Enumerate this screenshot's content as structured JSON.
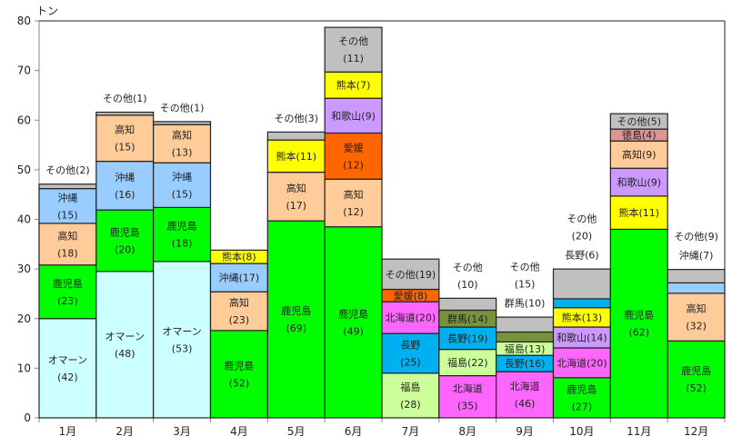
{
  "chart_data": {
    "type": "bar",
    "stacked": true,
    "variable_width": true,
    "title": "",
    "ylabel": "トン",
    "xlabel": "",
    "ylim": [
      0,
      80
    ],
    "yticks": [
      0,
      10,
      20,
      30,
      40,
      50,
      60,
      70,
      80
    ],
    "grid": false,
    "categories": [
      "1月",
      "2月",
      "3月",
      "4月",
      "5月",
      "6月",
      "7月",
      "8月",
      "9月",
      "10月",
      "11月",
      "12月"
    ],
    "colors": {
      "オマーン": "#ccffff",
      "鹿児島": "#00ff00",
      "高知": "#ffcc99",
      "沖縄": "#99ccff",
      "熊本": "#ffff00",
      "愛媛": "#ff6600",
      "和歌山": "#cc99ff",
      "北海道": "#ff66ff",
      "長野": "#00b0f0",
      "福島": "#ccff99",
      "群馬": "#77933c",
      "徳島": "#da9694",
      "その他": "#c0c0c0"
    },
    "months": [
      {
        "month": "1月",
        "segments": [
          {
            "name": "オマーン",
            "value": 20.0,
            "label": "オマーン\n(42)"
          },
          {
            "name": "鹿児島",
            "value": 10.8,
            "label": "鹿児島\n(23)"
          },
          {
            "name": "高知",
            "value": 8.4,
            "label": "高知\n(18)"
          },
          {
            "name": "沖縄",
            "value": 7.0,
            "label": "沖縄\n(15)"
          },
          {
            "name": "その他",
            "value": 0.9,
            "label": "その他(2)",
            "outside": true
          }
        ]
      },
      {
        "month": "2月",
        "segments": [
          {
            "name": "オマーン",
            "value": 29.5,
            "label": "オマーン\n(48)"
          },
          {
            "name": "鹿児島",
            "value": 12.4,
            "label": "鹿児島\n(20)"
          },
          {
            "name": "沖縄",
            "value": 9.8,
            "label": "沖縄\n(16)"
          },
          {
            "name": "高知",
            "value": 9.3,
            "label": "高知\n(15)"
          },
          {
            "name": "その他",
            "value": 0.6,
            "label": "その他(1)",
            "outside": true
          }
        ]
      },
      {
        "month": "3月",
        "segments": [
          {
            "name": "オマーン",
            "value": 31.5,
            "label": "オマーン\n(53)"
          },
          {
            "name": "鹿児島",
            "value": 10.9,
            "label": "鹿児島\n(18)"
          },
          {
            "name": "沖縄",
            "value": 9.0,
            "label": "沖縄\n(15)"
          },
          {
            "name": "高知",
            "value": 7.7,
            "label": "高知\n(13)"
          },
          {
            "name": "その他",
            "value": 0.6,
            "label": "その他(1)",
            "outside": true
          }
        ]
      },
      {
        "month": "4月",
        "segments": [
          {
            "name": "鹿児島",
            "value": 17.6,
            "label": "鹿児島\n(52)"
          },
          {
            "name": "高知",
            "value": 7.8,
            "label": "高知\n(23)"
          },
          {
            "name": "沖縄",
            "value": 5.7,
            "label": "沖縄(17)"
          },
          {
            "name": "熊本",
            "value": 2.7,
            "label": "熊本(8)"
          }
        ]
      },
      {
        "month": "5月",
        "segments": [
          {
            "name": "鹿児島",
            "value": 39.7,
            "label": "鹿児島\n(69)"
          },
          {
            "name": "高知",
            "value": 9.8,
            "label": "高知\n(17)"
          },
          {
            "name": "熊本",
            "value": 6.5,
            "label": "熊本(11)"
          },
          {
            "name": "その他",
            "value": 1.6,
            "label": "その他(3)",
            "outside": true
          }
        ]
      },
      {
        "month": "6月",
        "segments": [
          {
            "name": "鹿児島",
            "value": 38.5,
            "label": "鹿児島\n(49)"
          },
          {
            "name": "高知",
            "value": 9.6,
            "label": "高知\n(12)"
          },
          {
            "name": "愛媛",
            "value": 9.3,
            "label": "愛媛\n(12)"
          },
          {
            "name": "和歌山",
            "value": 7.0,
            "label": "和歌山(9)"
          },
          {
            "name": "熊本",
            "value": 5.3,
            "label": "熊本(7)"
          },
          {
            "name": "その他",
            "value": 9.0,
            "label": "その他\n(11)"
          }
        ]
      },
      {
        "month": "7月",
        "segments": [
          {
            "name": "福島",
            "value": 9.0,
            "label": "福島\n(28)"
          },
          {
            "name": "長野",
            "value": 8.0,
            "label": "長野\n(25)"
          },
          {
            "name": "北海道",
            "value": 6.4,
            "label": "北海道(20)"
          },
          {
            "name": "愛媛",
            "value": 2.5,
            "label": "愛媛(8)"
          },
          {
            "name": "その他",
            "value": 6.1,
            "label": "その他(19)"
          }
        ]
      },
      {
        "month": "8月",
        "segments": [
          {
            "name": "北海道",
            "value": 8.5,
            "label": "北海道\n(35)"
          },
          {
            "name": "福島",
            "value": 5.3,
            "label": "福島(22)"
          },
          {
            "name": "長野",
            "value": 4.5,
            "label": "長野(19)"
          },
          {
            "name": "群馬",
            "value": 3.4,
            "label": "群馬(14)"
          },
          {
            "name": "その他",
            "value": 2.4,
            "label": "その他\n(10)",
            "outside": true
          }
        ]
      },
      {
        "month": "9月",
        "segments": [
          {
            "name": "北海道",
            "value": 9.3,
            "label": "北海道\n(46)"
          },
          {
            "name": "長野",
            "value": 3.3,
            "label": "長野(16)"
          },
          {
            "name": "福島",
            "value": 2.7,
            "label": "福島(13)"
          },
          {
            "name": "群馬",
            "value": 2.0,
            "label": "群馬(10)",
            "outside": true
          },
          {
            "name": "その他",
            "value": 3.0,
            "label": "その他\n(15)",
            "outside": true
          }
        ]
      },
      {
        "month": "10月",
        "segments": [
          {
            "name": "鹿児島",
            "value": 8.1,
            "label": "鹿児島\n(27)"
          },
          {
            "name": "北海道",
            "value": 6.0,
            "label": "北海道(20)"
          },
          {
            "name": "和歌山",
            "value": 4.2,
            "label": "和歌山(14)"
          },
          {
            "name": "熊本",
            "value": 3.9,
            "label": "熊本(13)"
          },
          {
            "name": "長野",
            "value": 1.8,
            "label": "長野(6)",
            "outside": true
          },
          {
            "name": "その他",
            "value": 6.0,
            "label": "その他\n(20)",
            "outside": true
          }
        ]
      },
      {
        "month": "11月",
        "segments": [
          {
            "name": "鹿児島",
            "value": 38.0,
            "label": "鹿児島\n(62)"
          },
          {
            "name": "熊本",
            "value": 6.7,
            "label": "熊本(11)"
          },
          {
            "name": "和歌山",
            "value": 5.6,
            "label": "和歌山(9)"
          },
          {
            "name": "高知",
            "value": 5.5,
            "label": "高知(9)"
          },
          {
            "name": "徳島",
            "value": 2.4,
            "label": "徳島(4)"
          },
          {
            "name": "その他",
            "value": 3.1,
            "label": "その他(5)"
          }
        ]
      },
      {
        "month": "12月",
        "segments": [
          {
            "name": "鹿児島",
            "value": 15.5,
            "label": "鹿児島\n(52)"
          },
          {
            "name": "高知",
            "value": 9.6,
            "label": "高知\n(32)"
          },
          {
            "name": "沖縄",
            "value": 2.1,
            "label": "沖縄(7)",
            "outside": true
          },
          {
            "name": "その他",
            "value": 2.7,
            "label": "その他(9)",
            "outside": true
          }
        ]
      }
    ]
  }
}
